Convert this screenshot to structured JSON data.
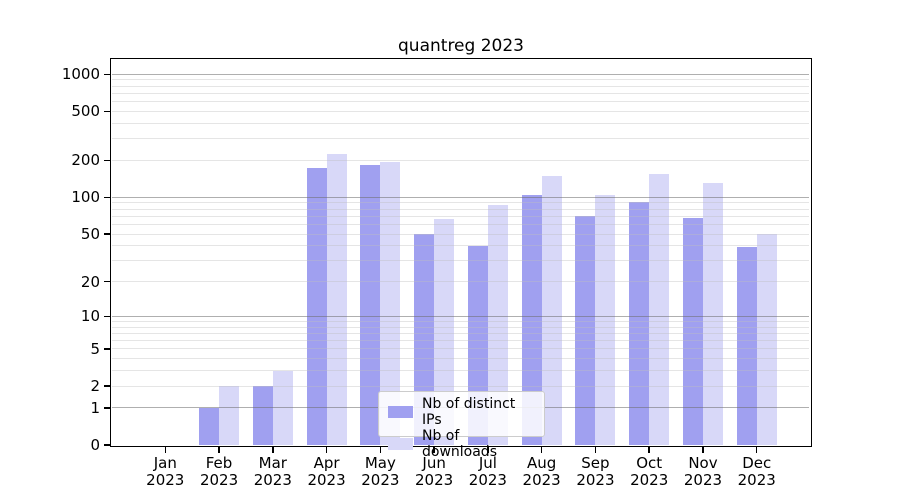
{
  "chart_data": {
    "type": "bar",
    "title": "quantreg 2023",
    "categories": [
      "Jan 2023",
      "Feb 2023",
      "Mar 2023",
      "Apr 2023",
      "May 2023",
      "Jun 2023",
      "Jul 2023",
      "Aug 2023",
      "Sep 2023",
      "Oct 2023",
      "Nov 2023",
      "Dec 2023"
    ],
    "series": [
      {
        "name": "Nb of distinct IPs",
        "color": "#a0a0f0",
        "values": [
          0,
          1,
          2,
          172,
          182,
          50,
          40,
          105,
          70,
          91,
          68,
          39
        ]
      },
      {
        "name": "Nb of downloads",
        "color": "#d8d8f8",
        "values": [
          0,
          2,
          3,
          224,
          193,
          67,
          86,
          150,
          105,
          155,
          132,
          50
        ]
      }
    ],
    "y_scale": "log1p",
    "y_ticks": [
      0,
      1,
      2,
      5,
      10,
      20,
      50,
      100,
      200,
      500,
      1000
    ],
    "ylim": [
      0,
      1330
    ],
    "grid": "horizontal major and minor",
    "legend_position": "inside, lower center"
  },
  "style": {
    "background": "#ffffff",
    "axis_color": "#000000",
    "text_color": "#000000",
    "grid_major_color": "#b0b0b0",
    "grid_minor_color": "#e8e8e8"
  }
}
